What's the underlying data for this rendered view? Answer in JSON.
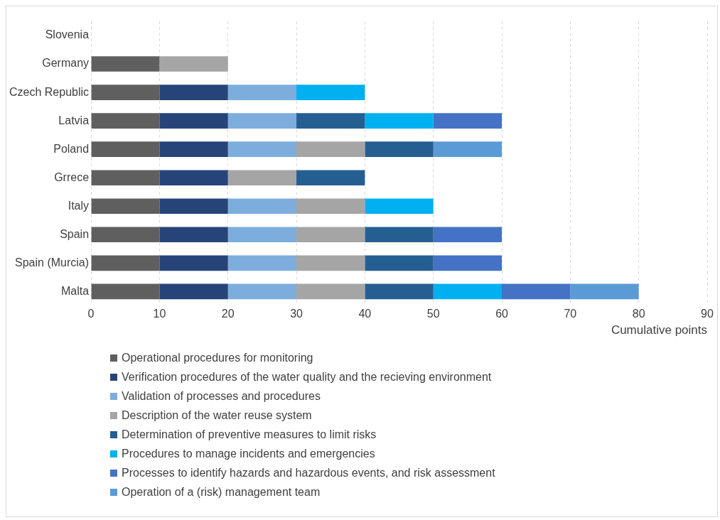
{
  "chart_data": {
    "type": "bar",
    "orientation": "horizontal",
    "stacked": true,
    "xlabel": "Cumulative points",
    "categories": [
      "Slovenia",
      "Germany",
      "Czech Republic",
      "Latvia",
      "Poland",
      "Grrece",
      "Italy",
      "Spain",
      "Spain (Murcia)",
      "Malta"
    ],
    "series": [
      {
        "name": "Operational procedures for monitoring",
        "color": "#5f5f5f",
        "values": [
          null,
          10,
          10,
          10,
          10,
          10,
          10,
          10,
          10,
          10
        ]
      },
      {
        "name": "Verification procedures of the water quality and the recieving environment",
        "color": "#264478",
        "values": [
          null,
          null,
          10,
          10,
          10,
          10,
          10,
          10,
          10,
          10
        ]
      },
      {
        "name": "Validation of processes and procedures",
        "color": "#7caddd",
        "values": [
          null,
          null,
          10,
          10,
          10,
          null,
          10,
          10,
          10,
          10
        ]
      },
      {
        "name": "Description of the water reuse system",
        "color": "#a5a5a5",
        "values": [
          null,
          10,
          null,
          null,
          10,
          10,
          10,
          10,
          10,
          10
        ]
      },
      {
        "name": "Determination of preventive measures to limit risks",
        "color": "#255e91",
        "values": [
          null,
          null,
          null,
          10,
          10,
          10,
          null,
          10,
          10,
          10
        ]
      },
      {
        "name": "Procedures to manage incidents and emergencies",
        "color": "#00b0f0",
        "values": [
          null,
          null,
          10,
          10,
          null,
          null,
          10,
          null,
          null,
          10
        ]
      },
      {
        "name": "Processes to identify hazards and hazardous events, and risk assessment",
        "color": "#4472c4",
        "values": [
          null,
          null,
          null,
          10,
          null,
          null,
          null,
          10,
          10,
          10
        ]
      },
      {
        "name": "Operation of a (risk) management team",
        "color": "#5b9bd5",
        "values": [
          null,
          null,
          null,
          null,
          10,
          null,
          null,
          null,
          null,
          10
        ]
      }
    ],
    "xlim": [
      0,
      90
    ],
    "xticks": [
      0,
      10,
      20,
      30,
      40,
      50,
      60,
      70,
      80,
      90
    ],
    "grid": "x",
    "legend": "bottom"
  }
}
